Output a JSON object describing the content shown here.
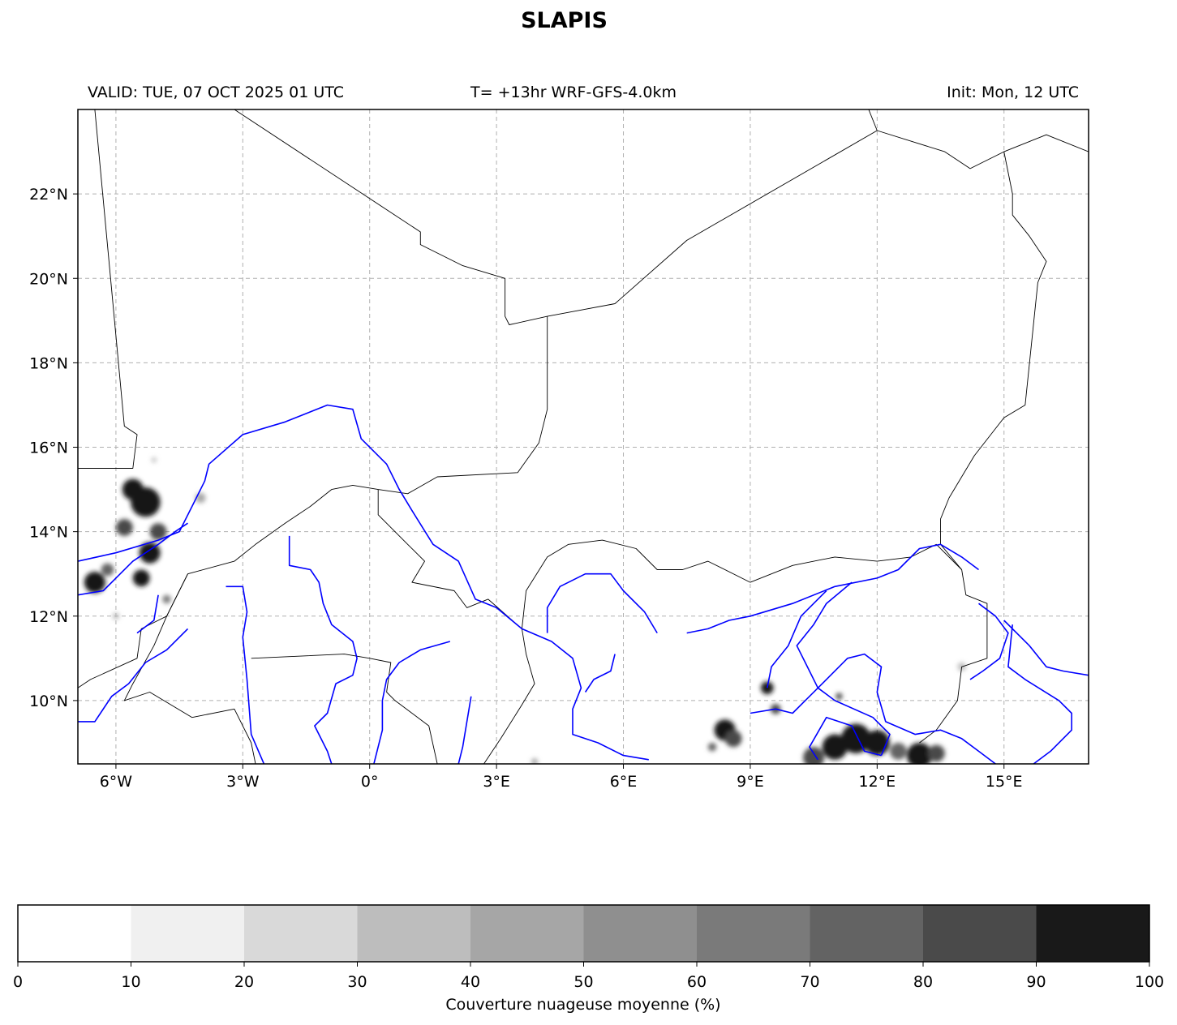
{
  "title": "SLAPIS",
  "header": {
    "valid": "VALID: TUE, 07 OCT 2025 01 UTC",
    "center": "T= +13hr WRF-GFS-4.0km",
    "init": "Init: Mon, 12 UTC"
  },
  "map": {
    "lon_range": [
      -6.9,
      17.0
    ],
    "lat_range": [
      8.5,
      24.0
    ],
    "lon_ticks": [
      {
        "value": -6,
        "label": "6°W"
      },
      {
        "value": -3,
        "label": "3°W"
      },
      {
        "value": 0,
        "label": "0°"
      },
      {
        "value": 3,
        "label": "3°E"
      },
      {
        "value": 6,
        "label": "6°E"
      },
      {
        "value": 9,
        "label": "9°E"
      },
      {
        "value": 12,
        "label": "12°E"
      },
      {
        "value": 15,
        "label": "15°E"
      }
    ],
    "lat_ticks": [
      {
        "value": 10,
        "label": "10°N"
      },
      {
        "value": 12,
        "label": "12°N"
      },
      {
        "value": 14,
        "label": "14°N"
      },
      {
        "value": 16,
        "label": "16°N"
      },
      {
        "value": 18,
        "label": "18°N"
      },
      {
        "value": 20,
        "label": "20°N"
      },
      {
        "value": 22,
        "label": "22°N"
      }
    ],
    "gridlines": true,
    "border_color": "#000000",
    "river_color": "#0000ff",
    "borders": [
      [
        [
          -6.5,
          24.0
        ],
        [
          -5.8,
          16.5
        ],
        [
          -5.5,
          16.3
        ],
        [
          -5.6,
          15.5
        ],
        [
          -6.9,
          15.5
        ]
      ],
      [
        [
          -3.2,
          24.0
        ],
        [
          1.2,
          21.1
        ],
        [
          1.2,
          20.8
        ],
        [
          2.2,
          20.3
        ],
        [
          3.2,
          20.0
        ],
        [
          3.2,
          19.1
        ],
        [
          3.3,
          18.9
        ],
        [
          4.2,
          19.1
        ],
        [
          5.8,
          19.4
        ],
        [
          7.5,
          20.9
        ],
        [
          12.0,
          23.5
        ],
        [
          13.6,
          23.0
        ],
        [
          14.2,
          22.6
        ],
        [
          15.0,
          23.0
        ],
        [
          16.0,
          23.4
        ],
        [
          17.0,
          23.0
        ]
      ],
      [
        [
          11.8,
          24.0
        ],
        [
          12.0,
          23.5
        ]
      ],
      [
        [
          15.0,
          23.0
        ],
        [
          15.2,
          22.0
        ],
        [
          15.2,
          21.5
        ],
        [
          15.6,
          21.0
        ],
        [
          16.0,
          20.4
        ],
        [
          15.8,
          19.9
        ],
        [
          15.5,
          17.0
        ],
        [
          15.0,
          16.7
        ],
        [
          14.3,
          15.8
        ],
        [
          13.7,
          14.8
        ],
        [
          13.5,
          14.3
        ],
        [
          13.5,
          13.7
        ],
        [
          14.0,
          13.1
        ],
        [
          14.1,
          12.5
        ],
        [
          14.6,
          12.3
        ],
        [
          14.6,
          11.6
        ],
        [
          14.6,
          11.0
        ],
        [
          14.0,
          10.8
        ],
        [
          13.9,
          10.0
        ],
        [
          13.4,
          9.3
        ],
        [
          13.0,
          9.0
        ]
      ],
      [
        [
          4.2,
          19.1
        ],
        [
          4.2,
          16.9
        ],
        [
          4.0,
          16.1
        ],
        [
          3.5,
          15.4
        ],
        [
          1.6,
          15.3
        ],
        [
          0.9,
          14.9
        ],
        [
          0.2,
          15.0
        ],
        [
          -0.4,
          15.1
        ],
        [
          -0.9,
          15.0
        ],
        [
          -1.4,
          14.6
        ],
        [
          -2.0,
          14.2
        ],
        [
          -2.7,
          13.7
        ],
        [
          -3.2,
          13.3
        ],
        [
          -4.3,
          13.0
        ],
        [
          -4.8,
          12.0
        ],
        [
          -5.4,
          11.7
        ],
        [
          -5.5,
          11.0
        ],
        [
          -6.6,
          10.5
        ],
        [
          -6.9,
          10.3
        ]
      ],
      [
        [
          -4.3,
          13.0
        ],
        [
          -4.8,
          12.0
        ],
        [
          -5.1,
          11.3
        ],
        [
          -5.6,
          10.4
        ],
        [
          -5.8,
          10.0
        ],
        [
          -5.2,
          10.2
        ],
        [
          -4.2,
          9.6
        ],
        [
          -3.2,
          9.8
        ],
        [
          -2.8,
          9.0
        ],
        [
          -2.7,
          8.5
        ]
      ],
      [
        [
          -2.8,
          11.0
        ],
        [
          -0.6,
          11.1
        ],
        [
          0.0,
          11.0
        ],
        [
          0.5,
          10.9
        ],
        [
          0.4,
          10.2
        ],
        [
          0.6,
          10.0
        ],
        [
          1.4,
          9.4
        ],
        [
          1.6,
          8.5
        ]
      ],
      [
        [
          0.2,
          15.0
        ],
        [
          0.2,
          14.4
        ],
        [
          0.9,
          13.7
        ],
        [
          1.3,
          13.3
        ],
        [
          1.0,
          12.8
        ],
        [
          2.0,
          12.6
        ],
        [
          2.3,
          12.2
        ],
        [
          2.8,
          12.4
        ],
        [
          3.6,
          11.7
        ],
        [
          3.7,
          11.1
        ],
        [
          3.9,
          10.4
        ],
        [
          3.6,
          9.9
        ],
        [
          3.1,
          9.1
        ],
        [
          2.7,
          8.5
        ]
      ],
      [
        [
          3.6,
          11.7
        ],
        [
          3.7,
          12.6
        ],
        [
          4.2,
          13.4
        ],
        [
          4.7,
          13.7
        ],
        [
          5.5,
          13.8
        ],
        [
          6.3,
          13.6
        ],
        [
          6.8,
          13.1
        ],
        [
          7.4,
          13.1
        ],
        [
          8.0,
          13.3
        ],
        [
          9.0,
          12.8
        ],
        [
          10.0,
          13.2
        ],
        [
          11.0,
          13.4
        ],
        [
          12.0,
          13.3
        ],
        [
          12.8,
          13.4
        ],
        [
          13.4,
          13.7
        ],
        [
          14.0,
          13.1
        ]
      ]
    ],
    "rivers": [
      [
        [
          -6.9,
          13.3
        ],
        [
          -6.0,
          13.5
        ],
        [
          -5.0,
          13.8
        ],
        [
          -4.5,
          14.0
        ],
        [
          -4.2,
          14.6
        ],
        [
          -3.9,
          15.2
        ],
        [
          -3.8,
          15.6
        ],
        [
          -3.0,
          16.3
        ],
        [
          -2.0,
          16.6
        ],
        [
          -1.0,
          17.0
        ],
        [
          -0.4,
          16.9
        ],
        [
          -0.2,
          16.2
        ],
        [
          0.4,
          15.6
        ],
        [
          0.7,
          15.0
        ],
        [
          1.0,
          14.5
        ],
        [
          1.5,
          13.7
        ],
        [
          2.1,
          13.3
        ],
        [
          2.5,
          12.4
        ],
        [
          3.0,
          12.2
        ],
        [
          3.6,
          11.7
        ],
        [
          4.3,
          11.4
        ],
        [
          4.8,
          11.0
        ],
        [
          5.0,
          10.3
        ],
        [
          4.8,
          9.8
        ],
        [
          4.8,
          9.2
        ],
        [
          5.4,
          9.0
        ],
        [
          6.0,
          8.7
        ],
        [
          6.6,
          8.6
        ]
      ],
      [
        [
          -6.9,
          12.5
        ],
        [
          -6.3,
          12.6
        ],
        [
          -6.0,
          12.9
        ],
        [
          -5.6,
          13.3
        ],
        [
          -5.0,
          13.7
        ]
      ],
      [
        [
          -5.0,
          13.7
        ],
        [
          -4.6,
          14.0
        ],
        [
          -4.3,
          14.2
        ]
      ],
      [
        [
          -1.9,
          13.9
        ],
        [
          -1.9,
          13.2
        ],
        [
          -1.4,
          13.1
        ],
        [
          -1.2,
          12.8
        ],
        [
          -1.1,
          12.3
        ],
        [
          -0.9,
          11.8
        ],
        [
          -0.4,
          11.4
        ],
        [
          -0.3,
          11.0
        ],
        [
          -0.4,
          10.6
        ],
        [
          -0.8,
          10.4
        ],
        [
          -1.0,
          9.7
        ],
        [
          -1.3,
          9.4
        ],
        [
          -1.0,
          8.8
        ],
        [
          -0.9,
          8.5
        ]
      ],
      [
        [
          -3.4,
          12.7
        ],
        [
          -3.0,
          12.7
        ],
        [
          -2.9,
          12.1
        ],
        [
          -3.0,
          11.5
        ],
        [
          -2.9,
          10.5
        ],
        [
          -2.8,
          9.2
        ],
        [
          -2.5,
          8.5
        ]
      ],
      [
        [
          -4.3,
          11.7
        ],
        [
          -4.8,
          11.2
        ],
        [
          -5.3,
          10.9
        ],
        [
          -5.7,
          10.4
        ],
        [
          -6.1,
          10.1
        ],
        [
          -6.5,
          9.5
        ],
        [
          -6.9,
          9.5
        ]
      ],
      [
        [
          -5.0,
          12.5
        ],
        [
          -5.1,
          11.9
        ],
        [
          -5.5,
          11.6
        ]
      ],
      [
        [
          1.9,
          11.4
        ],
        [
          1.2,
          11.2
        ],
        [
          0.7,
          10.9
        ],
        [
          0.4,
          10.5
        ],
        [
          0.3,
          10.0
        ],
        [
          0.3,
          9.3
        ],
        [
          0.1,
          8.5
        ]
      ],
      [
        [
          2.4,
          10.1
        ],
        [
          2.3,
          9.5
        ],
        [
          2.2,
          8.9
        ],
        [
          2.1,
          8.5
        ]
      ],
      [
        [
          4.2,
          11.6
        ],
        [
          4.2,
          12.2
        ],
        [
          4.5,
          12.7
        ],
        [
          5.1,
          13.0
        ],
        [
          5.7,
          13.0
        ],
        [
          6.0,
          12.6
        ],
        [
          6.5,
          12.1
        ],
        [
          6.8,
          11.6
        ]
      ],
      [
        [
          5.8,
          11.1
        ],
        [
          5.7,
          10.7
        ],
        [
          5.3,
          10.5
        ],
        [
          5.1,
          10.2
        ]
      ],
      [
        [
          7.5,
          11.6
        ],
        [
          8.0,
          11.7
        ],
        [
          8.5,
          11.9
        ],
        [
          9.0,
          12.0
        ],
        [
          10.0,
          12.3
        ],
        [
          11.0,
          12.7
        ],
        [
          12.0,
          12.9
        ],
        [
          12.5,
          13.1
        ],
        [
          13.0,
          13.6
        ],
        [
          13.5,
          13.7
        ],
        [
          14.0,
          13.4
        ],
        [
          14.4,
          13.1
        ]
      ],
      [
        [
          12.1,
          8.7
        ],
        [
          11.7,
          8.8
        ],
        [
          11.4,
          9.4
        ],
        [
          10.8,
          9.6
        ],
        [
          10.4,
          8.9
        ],
        [
          10.6,
          8.6
        ]
      ],
      [
        [
          12.1,
          8.7
        ],
        [
          12.3,
          9.2
        ],
        [
          11.9,
          9.6
        ],
        [
          11.0,
          10.0
        ],
        [
          10.6,
          10.3
        ],
        [
          10.3,
          10.9
        ],
        [
          10.1,
          11.3
        ],
        [
          10.5,
          11.8
        ],
        [
          10.8,
          12.3
        ],
        [
          11.4,
          12.8
        ]
      ],
      [
        [
          9.4,
          10.3
        ],
        [
          9.5,
          10.8
        ],
        [
          9.9,
          11.3
        ],
        [
          10.2,
          12.0
        ],
        [
          10.8,
          12.6
        ]
      ],
      [
        [
          9.0,
          9.7
        ],
        [
          9.6,
          9.8
        ],
        [
          10.0,
          9.7
        ],
        [
          10.3,
          10.0
        ],
        [
          10.8,
          10.5
        ],
        [
          11.3,
          11.0
        ],
        [
          11.7,
          11.1
        ],
        [
          12.1,
          10.8
        ],
        [
          12.0,
          10.2
        ],
        [
          12.2,
          9.5
        ],
        [
          12.9,
          9.2
        ],
        [
          13.5,
          9.3
        ],
        [
          14.0,
          9.1
        ],
        [
          14.4,
          8.8
        ],
        [
          14.8,
          8.5
        ]
      ],
      [
        [
          14.4,
          12.3
        ],
        [
          14.8,
          12.0
        ],
        [
          15.1,
          11.6
        ],
        [
          14.9,
          11.0
        ],
        [
          14.5,
          10.7
        ],
        [
          14.2,
          10.5
        ]
      ],
      [
        [
          15.0,
          11.9
        ],
        [
          15.6,
          11.3
        ],
        [
          16.0,
          10.8
        ],
        [
          16.4,
          10.7
        ],
        [
          17.0,
          10.6
        ]
      ],
      [
        [
          15.2,
          11.8
        ],
        [
          15.1,
          10.8
        ],
        [
          15.5,
          10.5
        ],
        [
          16.3,
          10.0
        ],
        [
          16.6,
          9.7
        ],
        [
          16.6,
          9.3
        ],
        [
          16.1,
          8.8
        ],
        [
          15.7,
          8.5
        ]
      ]
    ],
    "cloud_patches": [
      {
        "lon": -5.3,
        "lat": 14.7,
        "size": 0.35,
        "cover": 90
      },
      {
        "lon": -5.6,
        "lat": 15.0,
        "size": 0.25,
        "cover": 90
      },
      {
        "lon": -5.8,
        "lat": 14.1,
        "size": 0.2,
        "cover": 80
      },
      {
        "lon": -5.2,
        "lat": 13.5,
        "size": 0.25,
        "cover": 90
      },
      {
        "lon": -5.0,
        "lat": 14.0,
        "size": 0.2,
        "cover": 80
      },
      {
        "lon": -5.4,
        "lat": 12.9,
        "size": 0.2,
        "cover": 90
      },
      {
        "lon": -6.5,
        "lat": 12.8,
        "size": 0.25,
        "cover": 90
      },
      {
        "lon": -6.2,
        "lat": 13.1,
        "size": 0.15,
        "cover": 70
      },
      {
        "lon": -4.8,
        "lat": 12.4,
        "size": 0.1,
        "cover": 60
      },
      {
        "lon": -4.0,
        "lat": 14.8,
        "size": 0.12,
        "cover": 40
      },
      {
        "lon": -5.1,
        "lat": 15.7,
        "size": 0.06,
        "cover": 30
      },
      {
        "lon": -6.0,
        "lat": 12.0,
        "size": 0.08,
        "cover": 30
      },
      {
        "lon": 8.4,
        "lat": 9.3,
        "size": 0.25,
        "cover": 90
      },
      {
        "lon": 8.6,
        "lat": 9.1,
        "size": 0.2,
        "cover": 80
      },
      {
        "lon": 8.1,
        "lat": 8.9,
        "size": 0.1,
        "cover": 70
      },
      {
        "lon": 9.4,
        "lat": 10.3,
        "size": 0.15,
        "cover": 90
      },
      {
        "lon": 9.6,
        "lat": 9.8,
        "size": 0.12,
        "cover": 80
      },
      {
        "lon": 11.0,
        "lat": 8.9,
        "size": 0.3,
        "cover": 90
      },
      {
        "lon": 11.5,
        "lat": 9.1,
        "size": 0.35,
        "cover": 90
      },
      {
        "lon": 12.0,
        "lat": 9.0,
        "size": 0.3,
        "cover": 90
      },
      {
        "lon": 10.5,
        "lat": 8.65,
        "size": 0.25,
        "cover": 80
      },
      {
        "lon": 12.5,
        "lat": 8.8,
        "size": 0.2,
        "cover": 70
      },
      {
        "lon": 13.0,
        "lat": 8.7,
        "size": 0.3,
        "cover": 90
      },
      {
        "lon": 13.4,
        "lat": 8.75,
        "size": 0.2,
        "cover": 80
      },
      {
        "lon": 11.1,
        "lat": 10.1,
        "size": 0.08,
        "cover": 80
      },
      {
        "lon": 14.0,
        "lat": 10.8,
        "size": 0.1,
        "cover": 30
      },
      {
        "lon": 3.9,
        "lat": 8.55,
        "size": 0.08,
        "cover": 40
      }
    ]
  },
  "colorbar": {
    "label": "Couverture nuageuse moyenne (%)",
    "ticks": [
      "0",
      "10",
      "20",
      "30",
      "40",
      "50",
      "60",
      "70",
      "80",
      "90",
      "100"
    ],
    "colors": [
      "#ffffff",
      "#f0f0f0",
      "#d9d9d9",
      "#bdbdbd",
      "#a6a6a6",
      "#8f8f8f",
      "#7a7a7a",
      "#636363",
      "#4a4a4a",
      "#191919"
    ]
  }
}
